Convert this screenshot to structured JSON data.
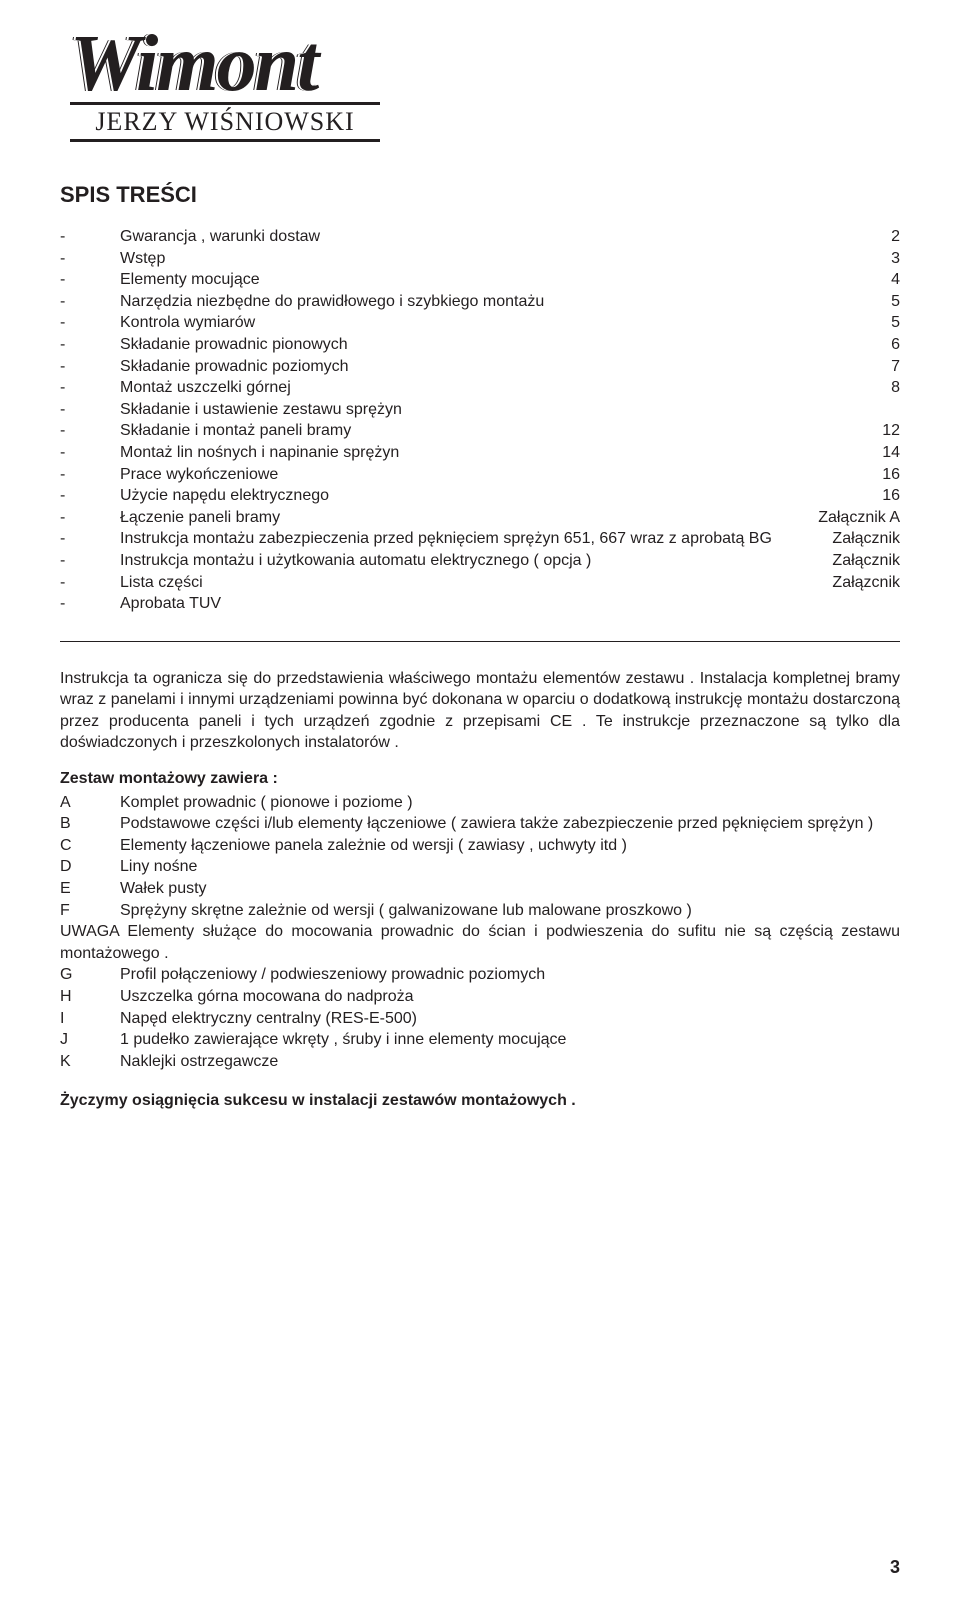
{
  "logo": {
    "main": "Wimont",
    "sub": "JERZY WIŚNIOWSKI"
  },
  "spis_title": "SPIS TREŚCI",
  "toc": [
    {
      "label": "Gwarancja , warunki dostaw",
      "val": "2"
    },
    {
      "label": "Wstęp",
      "val": "3"
    },
    {
      "label": "Elementy mocujące",
      "val": "4"
    },
    {
      "label": "Narzędzia niezbędne do prawidłowego i szybkiego montażu",
      "val": "5"
    },
    {
      "label": "Kontrola wymiarów",
      "val": "5"
    },
    {
      "label": "Składanie prowadnic pionowych",
      "val": "6"
    },
    {
      "label": "Składanie prowadnic poziomych",
      "val": "7"
    },
    {
      "label": "Montaż uszczelki górnej",
      "val": "8"
    },
    {
      "label": "Składanie i ustawienie zestawu sprężyn",
      "val": ""
    },
    {
      "label": "Składanie i montaż paneli bramy",
      "val": "12"
    },
    {
      "label": "Montaż lin nośnych i napinanie sprężyn",
      "val": "14"
    },
    {
      "label": "Prace wykończeniowe",
      "val": "16"
    },
    {
      "label": "Użycie napędu elektrycznego",
      "val": "16"
    },
    {
      "label": "Łączenie paneli bramy",
      "val": "Załącznik A"
    },
    {
      "label": "Instrukcja montażu zabezpieczenia przed pęknięciem sprężyn 651, 667 wraz z aprobatą BG",
      "val": "Załącznik"
    },
    {
      "label": "Instrukcja montażu i użytkowania automatu elektrycznego ( opcja )",
      "val": "Załącznik"
    },
    {
      "label": "Lista części",
      "val": "Załązcnik"
    },
    {
      "label": "Aprobata TUV",
      "val": ""
    }
  ],
  "intro_para": "Instrukcja ta ogranicza się do przedstawienia właściwego montażu elementów zestawu . Instalacja kompletnej bramy wraz z panelami i innymi urządzeniami powinna być dokonana w oparciu o dodatkową instrukcję montażu dostarczoną przez producenta paneli i tych urządzeń zgodnie z przepisami CE . Te instrukcje przeznaczone są tylko dla doświadczonych i przeszkolonych instalatorów .",
  "zestaw_title": "Zestaw montażowy zawiera :",
  "zestaw": [
    {
      "l": "A",
      "t": "Komplet prowadnic ( pionowe i poziome )"
    },
    {
      "l": "B",
      "t": "Podstawowe części i/lub elementy łączeniowe ( zawiera także zabezpieczenie przed pęknięciem sprężyn )"
    },
    {
      "l": "C",
      "t": "Elementy łączeniowe panela zależnie od wersji ( zawiasy , uchwyty itd )"
    },
    {
      "l": "D",
      "t": "Liny nośne"
    },
    {
      "l": "E",
      "t": "Wałek pusty"
    },
    {
      "l": "F",
      "t": "Sprężyny skrętne zależnie od wersji ( galwanizowane lub malowane proszkowo )"
    }
  ],
  "uwaga": "UWAGA Elementy służące do mocowania prowadnic do ścian i podwieszenia do sufitu nie są częścią zestawu montażowego .",
  "zestaw2": [
    {
      "l": "G",
      "t": "Profil połączeniowy / podwieszeniowy prowadnic poziomych"
    },
    {
      "l": "H",
      "t": "Uszczelka górna mocowana do nadproża"
    },
    {
      "l": "I",
      "t": "Napęd elektryczny centralny  (RES-E-500)"
    },
    {
      "l": "J",
      "t": "1 pudełko zawierające wkręty , śruby i inne elementy mocujące"
    },
    {
      "l": "K",
      "t": "Naklejki ostrzegawcze"
    }
  ],
  "closing": "Życzymy osiągnięcia sukcesu w instalacji zestawów montażowych .",
  "page_num": "3"
}
